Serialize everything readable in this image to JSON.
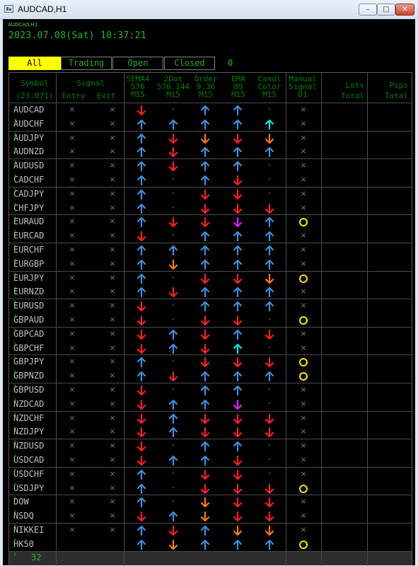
{
  "window": {
    "title": "AUDCAD,H1"
  },
  "chart": {
    "symbol_tag": "AUDCAD,H1",
    "datetime": "2023.07.08(Sat) 10:37:21"
  },
  "tabs": [
    {
      "label": "All",
      "active": true
    },
    {
      "label": "Trading",
      "active": false
    },
    {
      "label": "Open",
      "active": false
    },
    {
      "label": "Closed",
      "active": false
    }
  ],
  "tab_count": "0",
  "headers": {
    "symbol": "Symbol",
    "symbol_sub": "(23.071)",
    "signal": "Signal",
    "entry": "Entry",
    "exit": "Exit",
    "sema": [
      "SEMA4",
      "576",
      "M15"
    ],
    "dot": [
      "2Dot",
      "576.144",
      "M15"
    ],
    "order": [
      "Order",
      "9.36",
      "M15"
    ],
    "ema": [
      "EMA",
      "89",
      "M15"
    ],
    "candl": [
      "Candl",
      "Color",
      "M15"
    ],
    "manual": [
      "Manual",
      "Signal",
      "D1"
    ],
    "lots": [
      "Lots",
      "Total"
    ],
    "pips": [
      "Pips",
      "Total"
    ]
  },
  "colors": {
    "up_blue": "#3d8fe0",
    "down_red": "#ff2020",
    "down_orange": "#ff7a10",
    "cyan": "#00e5e5",
    "magenta": "#e020ff",
    "circle": "#ffe500",
    "active_tab": "#ffff00"
  },
  "rows": [
    {
      "symbol": "AUDCAD",
      "signal_row": true,
      "c": [
        "dr",
        "d",
        "ub",
        "ub",
        "d",
        "x"
      ]
    },
    {
      "symbol": "AUDCHF",
      "signal_row": true,
      "c": [
        "ub",
        "ub",
        "ub",
        "ub",
        "uc",
        "x"
      ]
    },
    {
      "symbol": "AUDJPY",
      "signal_row": true,
      "c": [
        "ub",
        "dr",
        "do",
        "dr",
        "do",
        "x"
      ]
    },
    {
      "symbol": "AUDNZD",
      "signal_row": true,
      "c": [
        "ub",
        "dr",
        "ub",
        "ub",
        "ub",
        "x"
      ]
    },
    {
      "symbol": "AUDUSD",
      "signal_row": true,
      "c": [
        "ub",
        "dr",
        "ub",
        "ub",
        "d",
        "x"
      ]
    },
    {
      "symbol": "CADCHF",
      "signal_row": true,
      "c": [
        "ub",
        "d",
        "ub",
        "dr",
        "d",
        "x"
      ]
    },
    {
      "symbol": "CADJPY",
      "signal_row": true,
      "c": [
        "ub",
        "d",
        "dr",
        "dr",
        "d",
        "x"
      ]
    },
    {
      "symbol": "CHFJPY",
      "signal_row": true,
      "c": [
        "ub",
        "d",
        "dr",
        "dr",
        "dr",
        "x"
      ]
    },
    {
      "symbol": "EURAUD",
      "signal_row": true,
      "c": [
        "ub",
        "dr",
        "dr",
        "dm",
        "ub",
        "o"
      ]
    },
    {
      "symbol": "EURCAD",
      "signal_row": true,
      "c": [
        "dr",
        "d",
        "ub",
        "ub",
        "ub",
        "x"
      ]
    },
    {
      "symbol": "EURCHF",
      "signal_row": true,
      "c": [
        "ub",
        "ub",
        "ub",
        "ub",
        "ub",
        "x"
      ]
    },
    {
      "symbol": "EURGBP",
      "signal_row": true,
      "c": [
        "ub",
        "do",
        "ub",
        "ub",
        "ub",
        "x"
      ]
    },
    {
      "symbol": "EURJPY",
      "signal_row": true,
      "c": [
        "ub",
        "d",
        "dr",
        "dr",
        "do",
        "o"
      ]
    },
    {
      "symbol": "EURNZD",
      "signal_row": true,
      "c": [
        "ub",
        "dr",
        "ub",
        "ub",
        "ub",
        "x"
      ]
    },
    {
      "symbol": "EURUSD",
      "signal_row": true,
      "c": [
        "dr",
        "d",
        "ub",
        "ub",
        "ub",
        "x"
      ]
    },
    {
      "symbol": "GBPAUD",
      "signal_row": true,
      "c": [
        "dr",
        "d",
        "dr",
        "dr",
        "d",
        "o"
      ]
    },
    {
      "symbol": "GBPCAD",
      "signal_row": true,
      "c": [
        "dr",
        "ub",
        "dr",
        "ub",
        "dr",
        "x"
      ]
    },
    {
      "symbol": "GBPCHF",
      "signal_row": true,
      "c": [
        "dr",
        "ub",
        "dr",
        "uc",
        "d",
        "x"
      ]
    },
    {
      "symbol": "GBPJPY",
      "signal_row": true,
      "c": [
        "ub",
        "d",
        "dr",
        "dr",
        "dr",
        "o"
      ]
    },
    {
      "symbol": "GBPNZD",
      "signal_row": true,
      "c": [
        "ub",
        "dr",
        "ub",
        "ub",
        "ub",
        "o"
      ]
    },
    {
      "symbol": "GBPUSD",
      "signal_row": true,
      "c": [
        "dr",
        "d",
        "ub",
        "ub",
        "d",
        "x"
      ]
    },
    {
      "symbol": "NZDCAD",
      "signal_row": true,
      "c": [
        "dr",
        "ub",
        "ub",
        "dm",
        "d",
        "x"
      ]
    },
    {
      "symbol": "NZDCHF",
      "signal_row": true,
      "c": [
        "dr",
        "ub",
        "dr",
        "dr",
        "dr",
        "x"
      ]
    },
    {
      "symbol": "NZDJPY",
      "signal_row": true,
      "c": [
        "dr",
        "ub",
        "dr",
        "dr",
        "dr",
        "x"
      ]
    },
    {
      "symbol": "NZDUSD",
      "signal_row": true,
      "c": [
        "dr",
        "d",
        "ub",
        "ub",
        "d",
        "x"
      ]
    },
    {
      "symbol": "USDCAD",
      "signal_row": true,
      "c": [
        "dr",
        "ub",
        "ub",
        "dr",
        "d",
        "x"
      ]
    },
    {
      "symbol": "USDCHF",
      "signal_row": true,
      "c": [
        "ub",
        "d",
        "dr",
        "dr",
        "d",
        "x"
      ]
    },
    {
      "symbol": "USDJPY",
      "signal_row": true,
      "c": [
        "ub",
        "d",
        "dr",
        "dr",
        "dr",
        "o"
      ]
    },
    {
      "symbol": "DOW",
      "signal_row": true,
      "c": [
        "ub",
        "d",
        "do",
        "dr",
        "dr",
        "x"
      ]
    },
    {
      "symbol": "NSDQ",
      "signal_row": true,
      "c": [
        "dr",
        "ub",
        "do",
        "dr",
        "dr",
        "x"
      ]
    },
    {
      "symbol": "NIKKEI",
      "signal_row": true,
      "c": [
        "ub",
        "dr",
        "ub",
        "do",
        "do",
        "x"
      ]
    },
    {
      "symbol": "HK50",
      "signal_row": false,
      "c": [
        "ub",
        "do",
        "ub",
        "ub",
        "ub",
        "o"
      ]
    }
  ],
  "footer": {
    "count": "32"
  }
}
